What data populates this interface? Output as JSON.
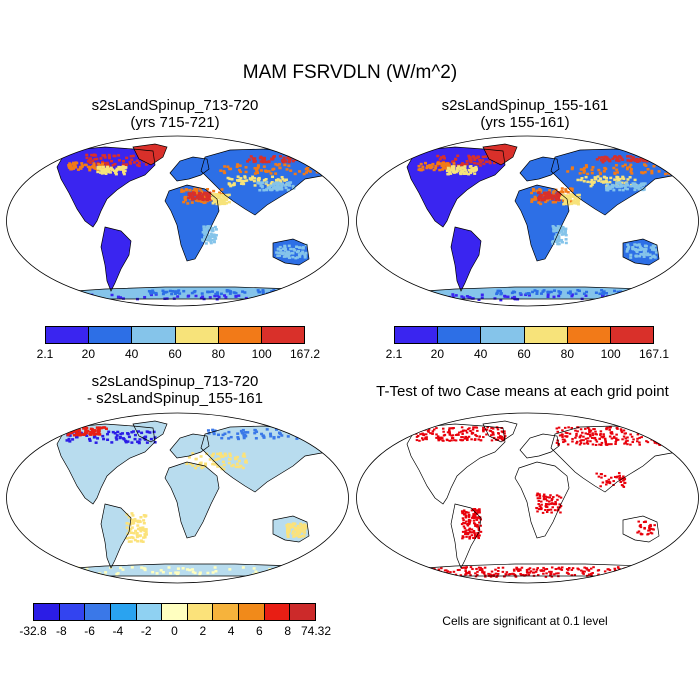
{
  "title": "MAM FSRVDLN (W/m^2)",
  "panels": [
    {
      "title_line1": "s2sLandSpinup_713-720",
      "title_line2": "(yrs 715-721)"
    },
    {
      "title_line1": "s2sLandSpinup_155-161",
      "title_line2": "(yrs 155-161)"
    },
    {
      "title_line1": "s2sLandSpinup_713-720",
      "title_line2": "- s2sLandSpinup_155-161"
    },
    {
      "title_line1": "T-Test of two Case means at each grid point",
      "title_line2": ""
    }
  ],
  "colorbars": {
    "abs1": {
      "labels": [
        "2.1",
        "20",
        "40",
        "60",
        "80",
        "100",
        "167.2"
      ],
      "colors": [
        "#3a25f0",
        "#2d6fe6",
        "#85c4ea",
        "#f7e37a",
        "#f27a18",
        "#d9302a"
      ]
    },
    "abs2": {
      "labels": [
        "2.1",
        "20",
        "40",
        "60",
        "80",
        "100",
        "167.1"
      ],
      "colors": [
        "#3a25f0",
        "#2d6fe6",
        "#85c4ea",
        "#f7e37a",
        "#f27a18",
        "#d9302a"
      ]
    },
    "diff": {
      "labels": [
        "-32.8",
        "-8",
        "-6",
        "-4",
        "-2",
        "0",
        "2",
        "4",
        "6",
        "8",
        "74.32"
      ],
      "colors": [
        "#2b1de6",
        "#3344f0",
        "#3a78e8",
        "#2aa3f0",
        "#8fd1f2",
        "#ffffc0",
        "#fbe27a",
        "#f6b33c",
        "#f18a1a",
        "#e81e14",
        "#cc2a2a"
      ]
    }
  },
  "note": "Cells are significant at 0.1 level",
  "palette": {
    "low": "#3a25f0",
    "mid": "#2d6fe6",
    "sky": "#85c4ea",
    "yellow": "#f7e37a",
    "orange": "#f27a18",
    "red": "#d9302a",
    "diff_bg": "#b8dcee",
    "sig": "#e8000b"
  }
}
